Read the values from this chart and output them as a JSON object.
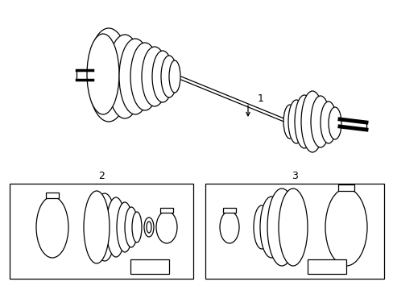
{
  "bg_color": "#ffffff",
  "line_color": "#000000",
  "fig_width": 4.89,
  "fig_height": 3.6,
  "dpi": 100,
  "label1": "1",
  "label2": "2",
  "label3": "3"
}
